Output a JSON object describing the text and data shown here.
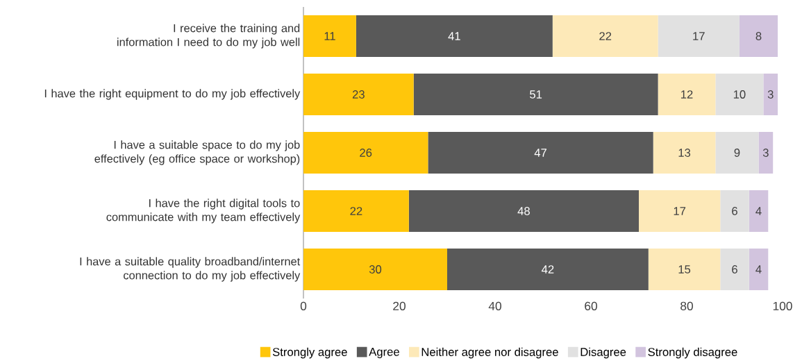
{
  "chart_data": {
    "type": "bar",
    "orientation": "horizontal",
    "stacked": true,
    "data_labels": true,
    "legend": "bottom",
    "grid": false,
    "categories": [
      "I receive the training and information I need to do my job well",
      "I have the right equipment to do my job effectively",
      "I have a suitable space to do my job effectively (eg office space or workshop)",
      "I have the right digital tools to communicate with my team effectively",
      "I have a suitable quality broadband/internet connection to do my job effectively"
    ],
    "series": [
      {
        "name": "Strongly agree",
        "color": "#ffc60b",
        "values": [
          11,
          23,
          26,
          22,
          30
        ]
      },
      {
        "name": "Agree",
        "color": "#595959",
        "values": [
          41,
          51,
          47,
          48,
          42
        ]
      },
      {
        "name": "Neither agree nor disagree",
        "color": "#fde9b8",
        "values": [
          22,
          12,
          13,
          17,
          15
        ]
      },
      {
        "name": "Disagree",
        "color": "#e1e1e1",
        "values": [
          17,
          10,
          9,
          6,
          6
        ]
      },
      {
        "name": "Strongly disagree",
        "color": "#d2c4de",
        "values": [
          8,
          3,
          3,
          4,
          4
        ]
      }
    ],
    "xlim": [
      0,
      100
    ],
    "xticks": [
      0,
      20,
      40,
      60,
      80,
      100
    ]
  }
}
